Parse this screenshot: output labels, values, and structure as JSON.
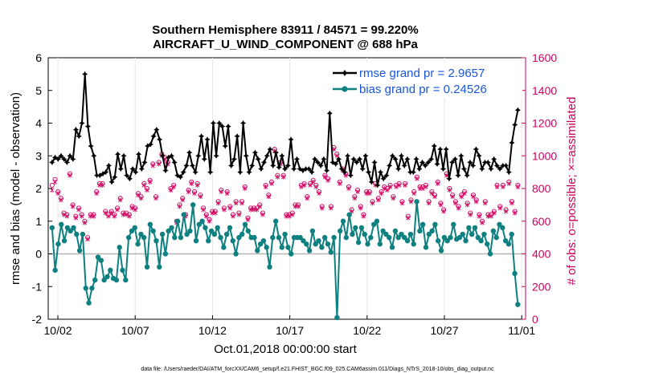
{
  "chart_data": {
    "type": "line",
    "title": "Southern Hemisphere 83911 / 84571 = 99.220%",
    "subtitle": "AIRCRAFT_U_WIND_COMPONENT @ 688 hPa",
    "xlabel": "Oct.01,2018 00:00:00 start",
    "ylabel": "rmse and bias (model - observation)",
    "ylabel_right": "# of obs: o=possible; ×=assimilated",
    "x_tick_labels": [
      "10/02",
      "10/07",
      "10/12",
      "10/17",
      "10/22",
      "10/27",
      "11/01"
    ],
    "x_tick_values": [
      1,
      6,
      11,
      16,
      21,
      26,
      31
    ],
    "xlim": [
      0.375,
      31.25
    ],
    "ylim": [
      -2,
      6
    ],
    "y_ticks": [
      -2,
      -1,
      0,
      1,
      2,
      3,
      4,
      5,
      6
    ],
    "ylim_right": [
      0,
      1600
    ],
    "y_ticks_right": [
      0,
      200,
      400,
      600,
      800,
      1000,
      1200,
      1400,
      1600
    ],
    "footnote": "data file: /Users/raeder/DAI/ATM_forcXX/CAM6_setup/f.e21.FHIST_BGC.f09_025.CAM6assim.011/Diags_NTrS_2018-10/obs_diag_output.nc",
    "colors": {
      "rmse": "#000000",
      "bias": "#0e8080",
      "obs": "#d0005e",
      "zero_line": "#b4b4b4",
      "legend_text": "#1a56d6"
    },
    "series": [
      {
        "name": "rmse grand pr = 2.9657",
        "color": "#000000",
        "marker": "star",
        "values": [
          2.8,
          2.95,
          2.9,
          3.0,
          2.9,
          2.8,
          3.0,
          2.9,
          3.8,
          3.6,
          4.0,
          5.5,
          3.9,
          3.3,
          3.0,
          2.4,
          2.4,
          2.45,
          2.5,
          2.7,
          2.2,
          2.35,
          3.05,
          2.6,
          3.0,
          2.4,
          2.3,
          2.6,
          2.5,
          3.05,
          2.6,
          2.8,
          3.3,
          3.35,
          3.6,
          3.8,
          3.5,
          3.0,
          2.55,
          2.95,
          3.0,
          2.8,
          2.4,
          2.35,
          2.5,
          2.7,
          3.1,
          2.7,
          2.5,
          3.0,
          3.6,
          2.9,
          3.5,
          2.5,
          4.0,
          3.0,
          4.0,
          3.9,
          3.3,
          3.9,
          2.7,
          2.9,
          3.6,
          2.5,
          4.0,
          3.0,
          2.5,
          2.7,
          3.1,
          2.9,
          2.6,
          2.8,
          3.0,
          3.2,
          2.7,
          3.1,
          2.65,
          3.0,
          2.6,
          2.7,
          3.5,
          2.6,
          2.9,
          2.6,
          2.55,
          2.6,
          2.6,
          2.5,
          2.9,
          2.8,
          2.7,
          2.9,
          2.55,
          4.3,
          2.8,
          2.75,
          2.9,
          2.6,
          2.5,
          3.0,
          2.4,
          2.9,
          2.8,
          2.9,
          2.6,
          3.0,
          2.5,
          2.2,
          2.8,
          2.1,
          2.5,
          2.3,
          2.4,
          2.7,
          3.0,
          2.9,
          2.6,
          3.0,
          2.7,
          2.9,
          2.5,
          2.5,
          2.9,
          2.6,
          2.8,
          2.7,
          2.8,
          2.9,
          3.3,
          2.75,
          3.2,
          2.6,
          3.2,
          2.3,
          2.8,
          2.9,
          2.4,
          3.0,
          2.6,
          2.4,
          2.8,
          2.7,
          3.2,
          3.0,
          2.6,
          2.8,
          2.8,
          2.6,
          2.9,
          2.7,
          2.6,
          2.7,
          2.7,
          2.5,
          3.4,
          3.95,
          4.4
        ]
      },
      {
        "name": "bias grand pr = 0.24526",
        "color": "#0e8080",
        "marker": "circle",
        "values": [
          0.8,
          -0.5,
          0.3,
          0.9,
          0.4,
          0.8,
          0.7,
          0.8,
          0.6,
          0.1,
          0.6,
          -1.05,
          -1.5,
          -1.05,
          -0.8,
          -0.1,
          -0.2,
          -0.8,
          -0.7,
          -0.5,
          -0.75,
          -0.8,
          0.2,
          -0.5,
          -0.8,
          0.5,
          0.7,
          0.8,
          0.3,
          0.6,
          0.5,
          -0.4,
          0.9,
          0.7,
          0.4,
          -0.4,
          0.6,
          0.0,
          0.7,
          0.8,
          0.5,
          1.0,
          0.5,
          1.2,
          0.6,
          0.7,
          1.5,
          0.4,
          0.9,
          1.0,
          0.8,
          0.4,
          0.7,
          0.6,
          0.8,
          0.5,
          0.2,
          0.6,
          0.8,
          0.4,
          0.0,
          0.5,
          0.6,
          0.9,
          0.7,
          0.5,
          0.5,
          0.1,
          0.3,
          0.4,
          0.2,
          -0.4,
          0.5,
          1.0,
          0.5,
          0.2,
          0.6,
          0.2,
          0.0,
          0.5,
          0.5,
          0.5,
          0.4,
          0.3,
          0.1,
          0.7,
          0.3,
          0.4,
          0.2,
          0.5,
          0.3,
          0.05,
          0.5,
          -1.95,
          0.7,
          1.0,
          0.5,
          1.2,
          0.6,
          0.8,
          0.35,
          0.8,
          0.6,
          0.3,
          0.5,
          0.9,
          1.0,
          0.3,
          0.7,
          0.6,
          0.5,
          0.2,
          0.7,
          0.5,
          0.6,
          0.5,
          0.4,
          0.6,
          0.3,
          1.6,
          0.7,
          0.9,
          0.2,
          0.6,
          0.7,
          0.9,
          0.4,
          0.1,
          0.5,
          0.4,
          0.5,
          0.9,
          0.45,
          0.5,
          0.6,
          0.4,
          0.8,
          0.6,
          0.8,
          0.5,
          0.4,
          0.6,
          0.3,
          0.0,
          0.7,
          0.5,
          0.9,
          0.8,
          0.4,
          0.3,
          0.6,
          -0.6,
          -1.55
        ]
      }
    ],
    "obs_possible": [
      820,
      855,
      780,
      740,
      650,
      640,
      890,
      700,
      630,
      680,
      640,
      600,
      500,
      640,
      640,
      780,
      830,
      830,
      660,
      640,
      660,
      640,
      680,
      740,
      650,
      650,
      640,
      690,
      680,
      770,
      750,
      830,
      800,
      850,
      950,
      750,
      960,
      1010,
      990,
      960,
      800,
      820,
      600,
      700,
      740,
      640,
      790,
      840,
      780,
      830,
      760,
      680,
      640,
      610,
      660,
      660,
      720,
      790,
      680,
      780,
      690,
      640,
      720,
      650,
      720,
      810,
      620,
      680,
      680,
      680,
      700,
      650,
      820,
      760,
      840,
      1040,
      880,
      960,
      880,
      640,
      640,
      650,
      700,
      700,
      820,
      830,
      750,
      830,
      850,
      820,
      780,
      690,
      880,
      860,
      690,
      1050,
      1010,
      840,
      920,
      890,
      810,
      670,
      750,
      790,
      690,
      640,
      780,
      780,
      720,
      830,
      740,
      780,
      810,
      800,
      820,
      750,
      820,
      830,
      720,
      830,
      630,
      730,
      780,
      870,
      810,
      810,
      820,
      720,
      780,
      760,
      840,
      710,
      670,
      890,
      800,
      760,
      720,
      690,
      760,
      780,
      710,
      650,
      760,
      730,
      640,
      600,
      720,
      640,
      640,
      660,
      820,
      690,
      820,
      670,
      840,
      720,
      660,
      820
    ],
    "obs_assimilated": [
      790,
      840,
      770,
      730,
      640,
      630,
      880,
      690,
      620,
      670,
      630,
      590,
      490,
      630,
      630,
      770,
      820,
      820,
      650,
      630,
      650,
      630,
      670,
      730,
      640,
      640,
      630,
      680,
      670,
      760,
      740,
      820,
      790,
      840,
      940,
      740,
      950,
      1000,
      980,
      950,
      790,
      810,
      590,
      690,
      730,
      630,
      780,
      830,
      770,
      820,
      750,
      670,
      630,
      600,
      650,
      650,
      710,
      780,
      670,
      770,
      680,
      630,
      710,
      640,
      710,
      800,
      610,
      670,
      670,
      670,
      690,
      640,
      810,
      750,
      830,
      1030,
      870,
      950,
      870,
      630,
      630,
      640,
      690,
      690,
      810,
      820,
      740,
      820,
      840,
      810,
      770,
      680,
      870,
      850,
      680,
      1040,
      1000,
      830,
      910,
      880,
      800,
      660,
      740,
      780,
      680,
      630,
      770,
      770,
      710,
      820,
      730,
      770,
      800,
      790,
      810,
      740,
      810,
      820,
      710,
      820,
      620,
      720,
      770,
      860,
      800,
      800,
      810,
      710,
      770,
      750,
      830,
      700,
      660,
      880,
      790,
      750,
      710,
      680,
      750,
      770,
      700,
      640,
      750,
      720,
      630,
      590,
      710,
      630,
      630,
      650,
      810,
      680,
      810,
      660,
      830,
      710,
      650,
      810
    ]
  }
}
